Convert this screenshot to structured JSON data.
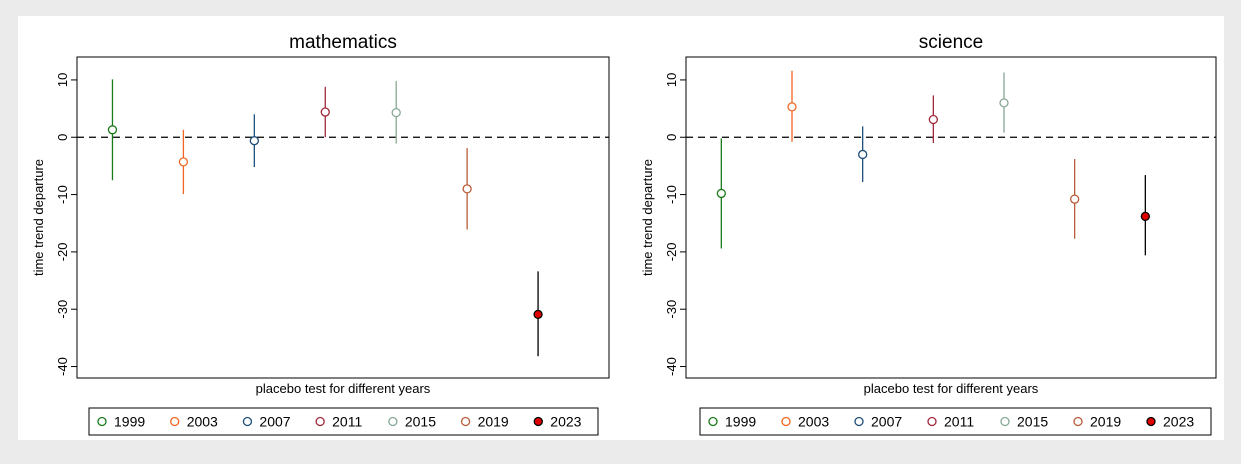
{
  "chart_data": [
    {
      "type": "scatter",
      "title": "mathematics",
      "xlabel": "placebo test for different years",
      "ylabel": "time trend departure",
      "ylim": [
        -42,
        14
      ],
      "yticks": [
        10,
        0,
        -10,
        -20,
        -30,
        -40
      ],
      "reference_line": 0,
      "legend_position": "bottom",
      "series": [
        {
          "name": "1999",
          "x": 1,
          "estimate": 1.3,
          "ci": [
            -7.5,
            10.1
          ],
          "color": "#1a7a1a",
          "filled": false
        },
        {
          "name": "2003",
          "x": 2,
          "estimate": -4.3,
          "ci": [
            -9.9,
            1.3
          ],
          "color": "#f26522",
          "filled": false
        },
        {
          "name": "2007",
          "x": 3,
          "estimate": -0.6,
          "ci": [
            -5.2,
            4.0
          ],
          "color": "#1f4e79",
          "filled": false
        },
        {
          "name": "2011",
          "x": 4,
          "estimate": 4.4,
          "ci": [
            0.0,
            8.8
          ],
          "color": "#a0283c",
          "filled": false
        },
        {
          "name": "2015",
          "x": 5,
          "estimate": 4.3,
          "ci": [
            -1.1,
            9.8
          ],
          "color": "#86a895",
          "filled": false
        },
        {
          "name": "2019",
          "x": 6,
          "estimate": -9.0,
          "ci": [
            -16.1,
            -1.9
          ],
          "color": "#b85c38",
          "filled": false
        },
        {
          "name": "2023",
          "x": 7,
          "estimate": -30.9,
          "ci": [
            -38.2,
            -23.4
          ],
          "color": "#e00000",
          "filled": true
        }
      ]
    },
    {
      "type": "scatter",
      "title": "science",
      "xlabel": "placebo test for different years",
      "ylabel": "time trend departure",
      "ylim": [
        -42,
        14
      ],
      "yticks": [
        10,
        0,
        -10,
        -20,
        -30,
        -40
      ],
      "reference_line": 0,
      "legend_position": "bottom",
      "series": [
        {
          "name": "1999",
          "x": 1,
          "estimate": -9.8,
          "ci": [
            -19.4,
            -0.2
          ],
          "color": "#1a7a1a",
          "filled": false
        },
        {
          "name": "2003",
          "x": 2,
          "estimate": 5.3,
          "ci": [
            -0.8,
            11.6
          ],
          "color": "#f26522",
          "filled": false
        },
        {
          "name": "2007",
          "x": 3,
          "estimate": -3.0,
          "ci": [
            -7.8,
            1.9
          ],
          "color": "#1f4e79",
          "filled": false
        },
        {
          "name": "2011",
          "x": 4,
          "estimate": 3.1,
          "ci": [
            -1.0,
            7.3
          ],
          "color": "#a0283c",
          "filled": false
        },
        {
          "name": "2015",
          "x": 5,
          "estimate": 6.0,
          "ci": [
            0.8,
            11.3
          ],
          "color": "#86a895",
          "filled": false
        },
        {
          "name": "2019",
          "x": 6,
          "estimate": -10.8,
          "ci": [
            -17.7,
            -3.8
          ],
          "color": "#b85c38",
          "filled": false
        },
        {
          "name": "2023",
          "x": 7,
          "estimate": -13.8,
          "ci": [
            -20.6,
            -6.6
          ],
          "color": "#e00000",
          "filled": true
        }
      ]
    }
  ]
}
